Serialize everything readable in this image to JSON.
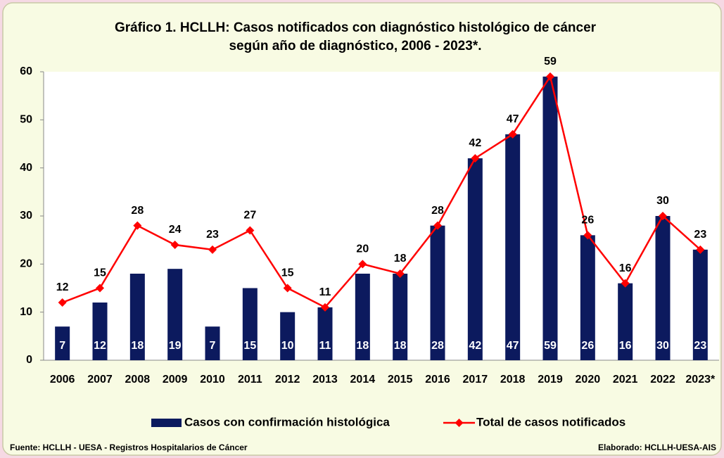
{
  "chart_data": {
    "type": "combo",
    "title": [
      "Gráfico 1. HCLLH: Casos notificados con diagnóstico histológico de cáncer",
      "según año de diagnóstico, 2006 - 2023*."
    ],
    "categories": [
      "2006",
      "2007",
      "2008",
      "2009",
      "2010",
      "2011",
      "2012",
      "2013",
      "2014",
      "2015",
      "2016",
      "2017",
      "2018",
      "2019",
      "2020",
      "2021",
      "2022",
      "2023*"
    ],
    "series": [
      {
        "name": "Casos con confirmación histológica",
        "type": "bar",
        "color": "#0c1a5e",
        "values": [
          7,
          12,
          18,
          19,
          7,
          15,
          10,
          11,
          18,
          18,
          28,
          42,
          47,
          59,
          26,
          16,
          30,
          23
        ]
      },
      {
        "name": "Total de casos notificados",
        "type": "line",
        "color": "#ff0000",
        "values": [
          12,
          15,
          28,
          24,
          23,
          27,
          15,
          11,
          20,
          18,
          28,
          42,
          47,
          59,
          26,
          16,
          30,
          23
        ]
      }
    ],
    "ylim": [
      0,
      60
    ],
    "yticks": [
      0,
      10,
      20,
      30,
      40,
      50,
      60
    ],
    "grid": false,
    "legend": "bottom",
    "source": "Fuente: HCLLH - UESA - Registros Hospitalarios de Cáncer",
    "credit": "Elaborado: HCLLH-UESA-AIS"
  }
}
